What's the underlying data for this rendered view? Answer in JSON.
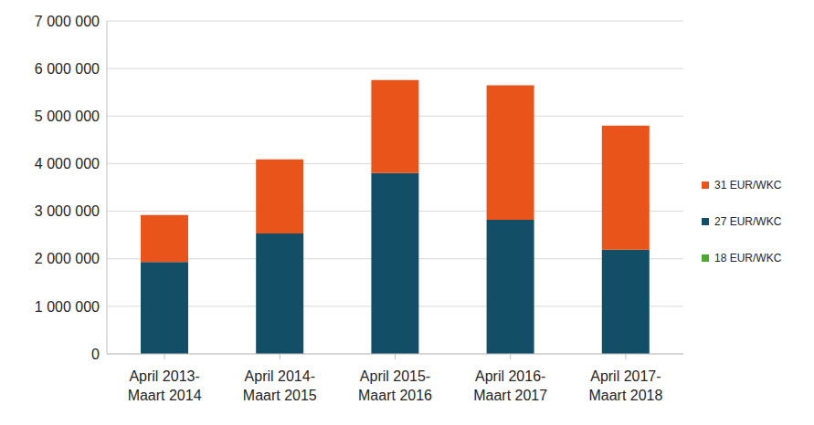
{
  "chart_data": {
    "type": "bar",
    "stacked": true,
    "categories": [
      "April 2013-Maart 2014",
      "April 2014-Maart 2015",
      "April 2015-Maart 2016",
      "April 2016-Maart 2017",
      "April 2017-Maart 2018"
    ],
    "series": [
      {
        "name": "18 EUR/WKC",
        "color": "#4ea72e",
        "values": [
          0,
          0,
          0,
          0,
          0
        ]
      },
      {
        "name": "27 EUR/WKC",
        "color": "#124f66",
        "values": [
          1930000,
          2530000,
          3800000,
          2820000,
          2190000
        ]
      },
      {
        "name": "31 EUR/WKC",
        "color": "#e8541a",
        "values": [
          990000,
          1560000,
          1960000,
          2830000,
          2610000
        ]
      }
    ],
    "ylim": [
      0,
      7000000
    ],
    "yticks": [
      0,
      {
        "value": 1000000,
        "label": "1 000 000"
      },
      {
        "value": 2000000,
        "label": "2 000 000"
      },
      {
        "value": 3000000,
        "label": "3 000 000"
      },
      {
        "value": 4000000,
        "label": "4 000 000"
      },
      {
        "value": 5000000,
        "label": "5 000 000"
      },
      {
        "value": 6000000,
        "label": "6 000 000"
      },
      {
        "value": 7000000,
        "label": "7 000 000"
      }
    ],
    "grid": true,
    "legend": "right"
  }
}
